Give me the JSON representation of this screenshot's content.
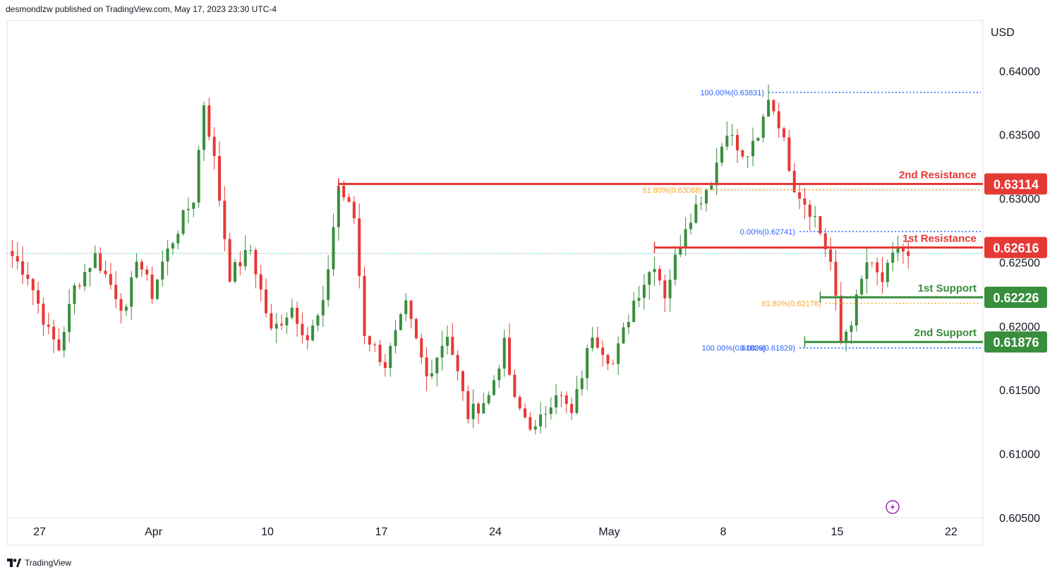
{
  "header": {
    "published": "desmondlzw published on TradingView.com, May 17, 2023 23:30 UTC-4"
  },
  "footer": {
    "brand": "TradingView"
  },
  "chart_data": {
    "type": "candlestick",
    "currency": "USD",
    "ylim": [
      0.605,
      0.6435
    ],
    "y_ticks": [
      "0.64000",
      "0.63500",
      "0.63000",
      "0.62500",
      "0.62000",
      "0.61500",
      "0.61000",
      "0.60500"
    ],
    "y_tick_values": [
      0.64,
      0.635,
      0.63,
      0.625,
      0.62,
      0.615,
      0.61,
      0.605
    ],
    "x_ticks": [
      "27",
      "Apr",
      "10",
      "17",
      "24",
      "May",
      "8",
      "15",
      "22"
    ],
    "x_tick_bar_index": [
      5,
      27,
      49,
      71,
      93,
      115,
      137,
      159,
      181
    ],
    "bars_per_day": 4,
    "last_price": 0.6257,
    "levels": [
      {
        "name": "2nd Resistance",
        "price": 0.63114,
        "price_label": "0.63114",
        "color": "#e53935",
        "start_bar": 63
      },
      {
        "name": "1st Resistance",
        "price": 0.62616,
        "price_label": "0.62616",
        "color": "#e53935",
        "start_bar": 124
      },
      {
        "name": "1st Support",
        "price": 0.62226,
        "price_label": "0.62226",
        "color": "#388e3c",
        "start_bar": 156
      },
      {
        "name": "2nd Support",
        "price": 0.61876,
        "price_label": "0.61876",
        "color": "#388e3c",
        "start_bar": 153
      }
    ],
    "fib_levels": [
      {
        "label": "100.00%(0.63831)",
        "price": 0.63831,
        "color": "#2962ff",
        "start_bar": 146
      },
      {
        "label": "61.80%(0.63068)",
        "price": 0.63068,
        "color": "#f9a825",
        "start_bar": 134
      },
      {
        "label": "0.00%(0.62741)",
        "price": 0.62741,
        "color": "#2962ff",
        "start_bar": 152
      },
      {
        "label": "61.80%(0.62178)",
        "price": 0.62178,
        "color": "#f9a825",
        "start_bar": 157
      },
      {
        "label": "0.00%(0.61829)",
        "price": 0.61829,
        "color": "#2962ff",
        "start_bar": 152
      },
      {
        "label": "100.00%(0.61829)",
        "price": 0.61829,
        "color": "#2962ff",
        "start_bar": 152
      }
    ],
    "waypoints": [
      [
        0,
        0.6255
      ],
      [
        3,
        0.624
      ],
      [
        7,
        0.6195
      ],
      [
        9,
        0.6182
      ],
      [
        12,
        0.623
      ],
      [
        16,
        0.6255
      ],
      [
        20,
        0.6225
      ],
      [
        22,
        0.621
      ],
      [
        24,
        0.6255
      ],
      [
        27,
        0.6225
      ],
      [
        29,
        0.625
      ],
      [
        33,
        0.6285
      ],
      [
        35,
        0.63
      ],
      [
        37,
        0.6375
      ],
      [
        39,
        0.633
      ],
      [
        42,
        0.624
      ],
      [
        46,
        0.626
      ],
      [
        50,
        0.6195
      ],
      [
        54,
        0.6215
      ],
      [
        57,
        0.619
      ],
      [
        60,
        0.6215
      ],
      [
        63,
        0.631
      ],
      [
        66,
        0.6285
      ],
      [
        68,
        0.6195
      ],
      [
        72,
        0.617
      ],
      [
        76,
        0.6215
      ],
      [
        80,
        0.616
      ],
      [
        84,
        0.6195
      ],
      [
        88,
        0.613
      ],
      [
        92,
        0.6145
      ],
      [
        95,
        0.6185
      ],
      [
        97,
        0.614
      ],
      [
        101,
        0.6118
      ],
      [
        105,
        0.615
      ],
      [
        108,
        0.613
      ],
      [
        112,
        0.6195
      ],
      [
        116,
        0.617
      ],
      [
        120,
        0.622
      ],
      [
        124,
        0.625
      ],
      [
        126,
        0.6225
      ],
      [
        130,
        0.628
      ],
      [
        135,
        0.6315
      ],
      [
        138,
        0.6355
      ],
      [
        141,
        0.633
      ],
      [
        144,
        0.6345
      ],
      [
        146,
        0.638
      ],
      [
        148,
        0.636
      ],
      [
        151,
        0.631
      ],
      [
        155,
        0.6285
      ],
      [
        158,
        0.625
      ],
      [
        160,
        0.6188
      ],
      [
        162,
        0.6205
      ],
      [
        165,
        0.625
      ],
      [
        168,
        0.6235
      ],
      [
        171,
        0.6262
      ],
      [
        173,
        0.6255
      ]
    ]
  }
}
